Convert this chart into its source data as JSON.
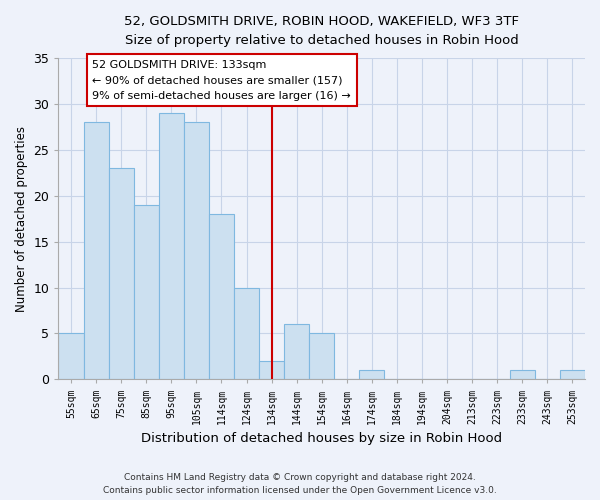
{
  "title1": "52, GOLDSMITH DRIVE, ROBIN HOOD, WAKEFIELD, WF3 3TF",
  "title2": "Size of property relative to detached houses in Robin Hood",
  "xlabel": "Distribution of detached houses by size in Robin Hood",
  "ylabel": "Number of detached properties",
  "bar_labels": [
    "55sqm",
    "65sqm",
    "75sqm",
    "85sqm",
    "95sqm",
    "105sqm",
    "114sqm",
    "124sqm",
    "134sqm",
    "144sqm",
    "154sqm",
    "164sqm",
    "174sqm",
    "184sqm",
    "194sqm",
    "204sqm",
    "213sqm",
    "223sqm",
    "233sqm",
    "243sqm",
    "253sqm"
  ],
  "bar_values": [
    5,
    28,
    23,
    19,
    29,
    28,
    18,
    10,
    2,
    6,
    5,
    0,
    1,
    0,
    0,
    0,
    0,
    0,
    1,
    0,
    1
  ],
  "bar_color": "#cce0f0",
  "bar_edge_color": "#7fb8e0",
  "vline_color": "#cc0000",
  "ylim": [
    0,
    35
  ],
  "yticks": [
    0,
    5,
    10,
    15,
    20,
    25,
    30,
    35
  ],
  "annotation_title": "52 GOLDSMITH DRIVE: 133sqm",
  "annotation_line1": "← 90% of detached houses are smaller (157)",
  "annotation_line2": "9% of semi-detached houses are larger (16) →",
  "annotation_box_color": "#ffffff",
  "annotation_box_edge_color": "#cc0000",
  "footer1": "Contains HM Land Registry data © Crown copyright and database right 2024.",
  "footer2": "Contains public sector information licensed under the Open Government Licence v3.0.",
  "bg_color": "#eef2fa",
  "plot_bg_color": "#eef2fa",
  "grid_color": "#c8d4e8",
  "vline_bar_index": 8
}
